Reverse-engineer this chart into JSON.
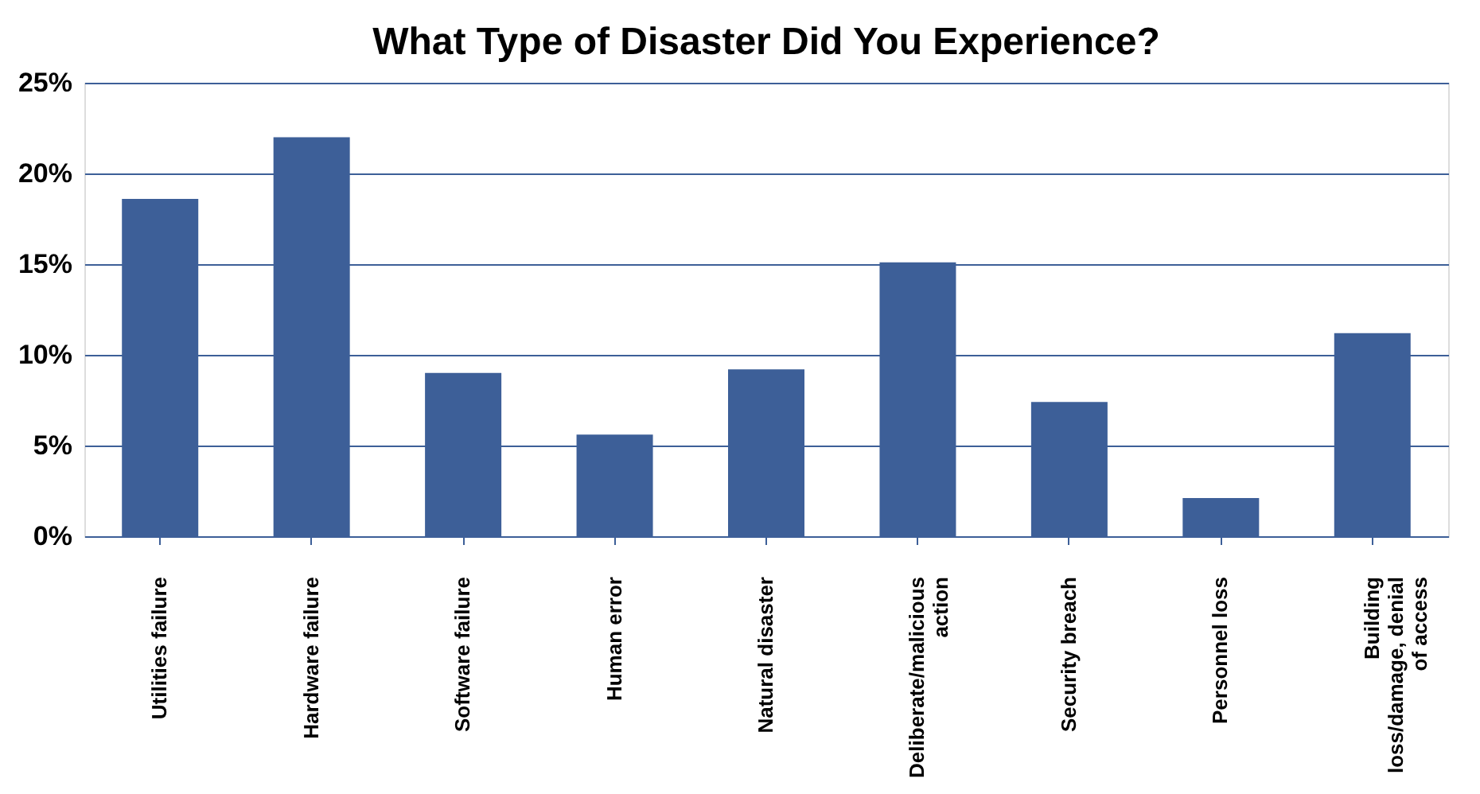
{
  "chart_data": {
    "type": "bar",
    "title": "What Type of Disaster Did You Experience?",
    "categories": [
      "Utilities failure",
      "Hardware failure",
      "Software failure",
      "Human error",
      "Natural disaster",
      "Deliberate/malicious action",
      "Security breach",
      "Personnel loss",
      "Building loss/damage, denial of access"
    ],
    "values": [
      18.6,
      22.0,
      9.0,
      5.6,
      9.2,
      15.1,
      7.4,
      2.1,
      11.2
    ],
    "color": "#3d5f98",
    "ylim": [
      0,
      25
    ],
    "yticks": [
      {
        "value": 0,
        "label": "0%"
      },
      {
        "value": 5,
        "label": "5%"
      },
      {
        "value": 10,
        "label": "10%"
      },
      {
        "value": 15,
        "label": "15%"
      },
      {
        "value": 20,
        "label": "20%"
      },
      {
        "value": 25,
        "label": "25%"
      }
    ],
    "grid": "y"
  }
}
